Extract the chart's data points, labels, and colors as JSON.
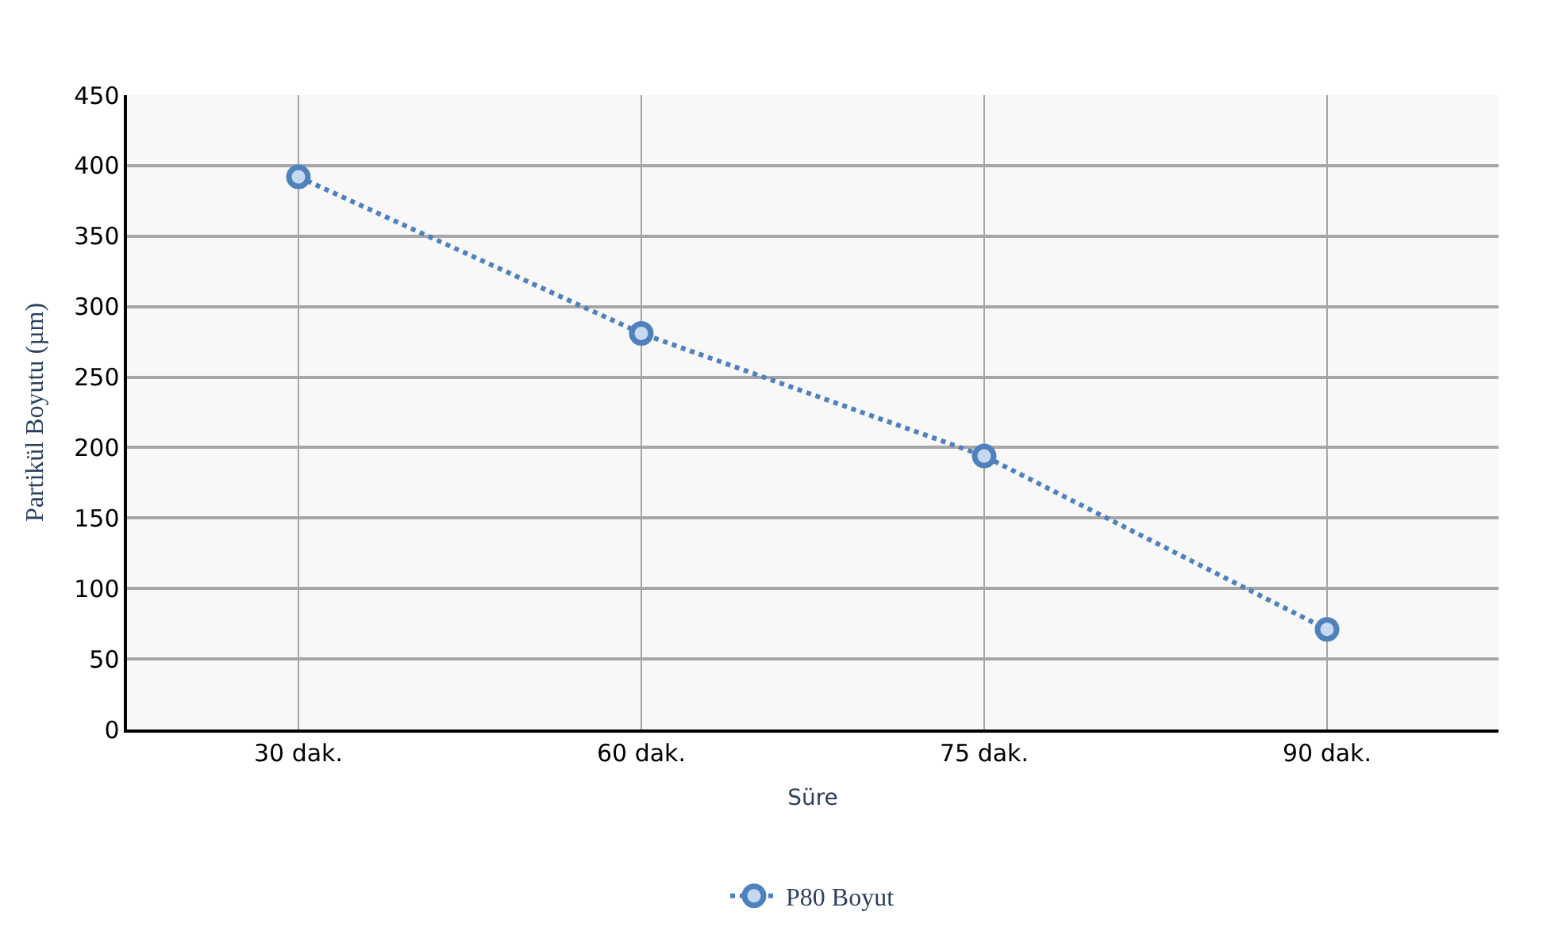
{
  "chart_data": {
    "type": "line",
    "xlabel": "Süre",
    "ylabel": "Partikül Boyutu (µm)",
    "categories": [
      "30 dak.",
      "60 dak.",
      "75 dak.",
      "90 dak."
    ],
    "series": [
      {
        "name": "P80 Boyut",
        "color": "#4f81bd",
        "values": [
          392,
          281,
          194,
          71
        ]
      }
    ],
    "ylim": [
      0,
      450
    ],
    "yticks": [
      0,
      50,
      100,
      150,
      200,
      250,
      300,
      350,
      400,
      450
    ],
    "grid": true,
    "legend": "bottom",
    "marker": "circle",
    "line_style": "dotted"
  }
}
